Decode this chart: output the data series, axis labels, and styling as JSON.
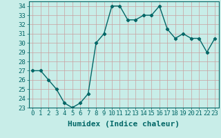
{
  "x": [
    0,
    1,
    2,
    3,
    4,
    5,
    6,
    7,
    8,
    9,
    10,
    11,
    12,
    13,
    14,
    15,
    16,
    17,
    18,
    19,
    20,
    21,
    22,
    23
  ],
  "y": [
    27,
    27,
    26,
    25,
    23.5,
    23,
    23.5,
    24.5,
    30,
    31,
    34,
    34,
    32.5,
    32.5,
    33,
    33,
    34,
    31.5,
    30.5,
    31,
    30.5,
    30.5,
    29,
    30.5
  ],
  "line_color": "#006666",
  "marker": "D",
  "marker_size": 2.2,
  "bg_color": "#c8ede8",
  "grid_major_color": "#b0b0b0",
  "grid_minor_color": "#cccccc",
  "xlabel": "Humidex (Indice chaleur)",
  "xlim": [
    -0.5,
    23.5
  ],
  "ylim": [
    23,
    34.5
  ],
  "yticks": [
    23,
    24,
    25,
    26,
    27,
    28,
    29,
    30,
    31,
    32,
    33,
    34
  ],
  "xticks": [
    0,
    1,
    2,
    3,
    4,
    5,
    6,
    7,
    8,
    9,
    10,
    11,
    12,
    13,
    14,
    15,
    16,
    17,
    18,
    19,
    20,
    21,
    22,
    23
  ],
  "xlabel_fontsize": 8,
  "tick_fontsize": 6.5,
  "line_width": 1.0
}
